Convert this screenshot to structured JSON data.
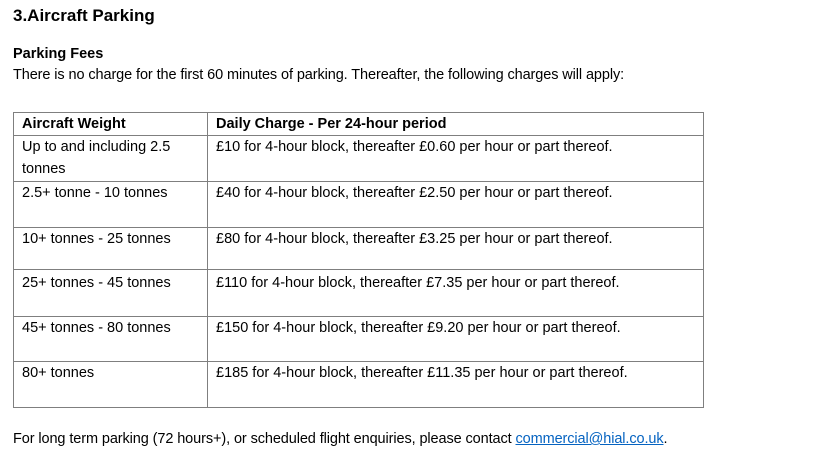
{
  "section_title": "3.Aircraft Parking",
  "subheading": "Parking Fees",
  "intro": "There is no charge for the first 60 minutes of parking. Thereafter, the following charges will apply:",
  "table": {
    "headers": [
      "Aircraft Weight",
      "Daily Charge - Per 24-hour period"
    ],
    "rows": [
      [
        "Up to and including 2.5 tonnes",
        "£10 for 4-hour block, thereafter £0.60 per hour or part thereof."
      ],
      [
        "2.5+ tonne - 10 tonnes",
        "£40 for 4-hour block, thereafter £2.50 per hour or part thereof."
      ],
      [
        "10+ tonnes - 25 tonnes",
        "£80 for 4-hour block, thereafter £3.25 per hour or part thereof."
      ],
      [
        "25+ tonnes - 45 tonnes",
        "£110 for 4-hour block, thereafter £7.35 per hour or part thereof."
      ],
      [
        "45+ tonnes - 80 tonnes",
        "£150 for 4-hour block, thereafter £9.20 per hour or part thereof."
      ],
      [
        "80+ tonnes",
        "£185 for 4-hour block, thereafter £11.35 per hour or part thereof."
      ]
    ]
  },
  "footer": {
    "text": "For long term parking (72 hours+), or scheduled flight enquiries, please contact ",
    "email": "commercial@hial.co.uk",
    "end": "."
  },
  "colors": {
    "link": "#0563c1",
    "border": "#7f7f7f"
  }
}
